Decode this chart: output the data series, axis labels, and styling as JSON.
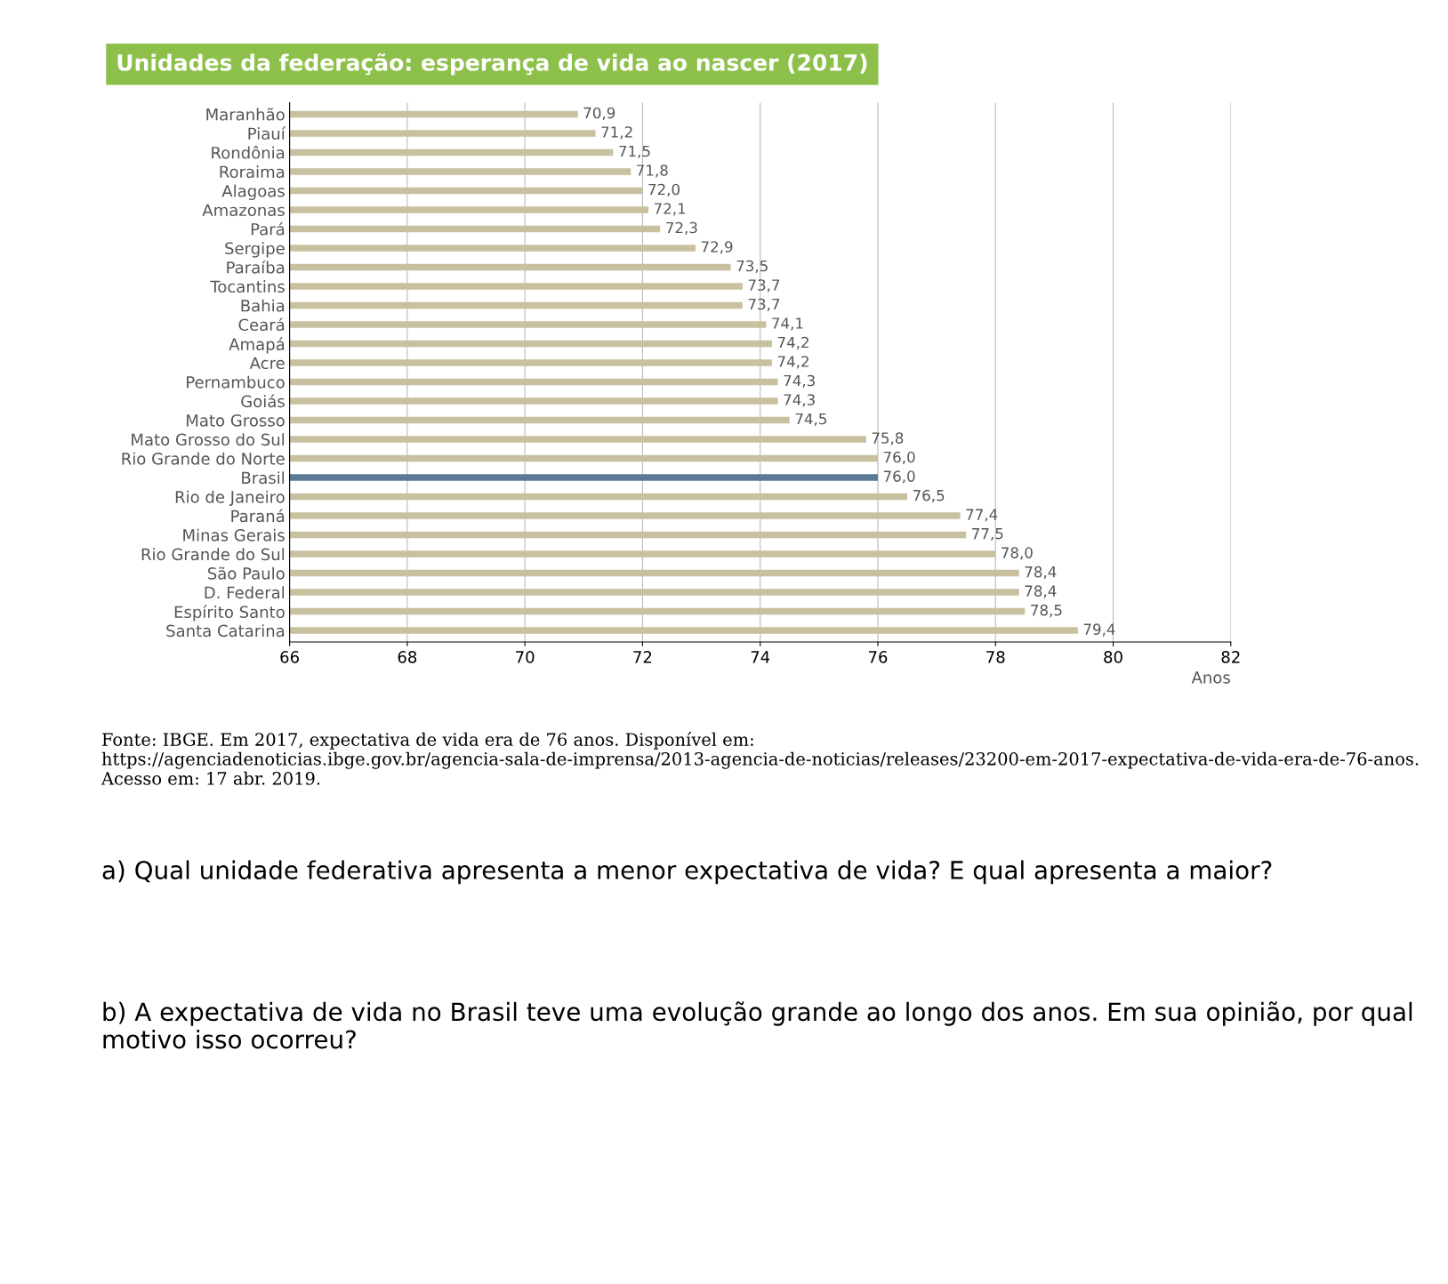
{
  "chart_data": {
    "type": "bar",
    "orientation": "horizontal",
    "title": "Unidades da federação: esperança de vida ao nascer (2017)",
    "xlabel": "Anos",
    "categories": [
      "Maranhão",
      "Piauí",
      "Rondônia",
      "Roraima",
      "Alagoas",
      "Amazonas",
      "Pará",
      "Sergipe",
      "Paraíba",
      "Tocantins",
      "Bahia",
      "Ceará",
      "Amapá",
      "Acre",
      "Pernambuco",
      "Goiás",
      "Mato Grosso",
      "Mato Grosso do Sul",
      "Rio Grande do Norte",
      "Brasil",
      "Rio de Janeiro",
      "Paraná",
      "Minas Gerais",
      "Rio Grande do Sul",
      "São Paulo",
      "D. Federal",
      "Espírito Santo",
      "Santa Catarina"
    ],
    "values": [
      70.9,
      71.2,
      71.5,
      71.8,
      72.0,
      72.1,
      72.3,
      72.9,
      73.5,
      73.7,
      73.7,
      74.1,
      74.2,
      74.2,
      74.3,
      74.3,
      74.5,
      75.8,
      76.0,
      76.0,
      76.5,
      77.4,
      77.5,
      78.0,
      78.4,
      78.4,
      78.5,
      79.4
    ],
    "value_labels": [
      "70,9",
      "71,2",
      "71,5",
      "71,8",
      "72,0",
      "72,1",
      "72,3",
      "72,9",
      "73,5",
      "73,7",
      "73,7",
      "74,1",
      "74,2",
      "74,2",
      "74,3",
      "74,3",
      "74,5",
      "75,8",
      "76,0",
      "76,0",
      "76,5",
      "77,4",
      "77,5",
      "78,0",
      "78,4",
      "78,4",
      "78,5",
      "79,4"
    ],
    "colors": [
      "#c8c09e",
      "#c8c09e",
      "#c8c09e",
      "#c8c09e",
      "#c8c09e",
      "#c8c09e",
      "#c8c09e",
      "#c8c09e",
      "#c8c09e",
      "#c8c09e",
      "#c8c09e",
      "#c8c09e",
      "#c8c09e",
      "#c8c09e",
      "#c8c09e",
      "#c8c09e",
      "#c8c09e",
      "#c8c09e",
      "#c8c09e",
      "#5b7a98",
      "#c8c09e",
      "#c8c09e",
      "#c8c09e",
      "#c8c09e",
      "#c8c09e",
      "#c8c09e",
      "#c8c09e",
      "#c8c09e"
    ],
    "xlim": [
      66,
      82
    ],
    "xticks": [
      66,
      68,
      70,
      72,
      74,
      76,
      78,
      80,
      82
    ],
    "grid": "x",
    "legend": false,
    "annotations": [
      "Fonte: IBGE. Em 2017, expectativa de vida era de 76 anos. Disponível em: https://agenciadenoticias.ibge.gov.br/agencia-sala-de-imprensa/2013-agencia-de-noticias/releases/23200-em-2017-expectativa-de-vida-era-de-76-anos. Acesso em: 17 abr. 2019.",
      "a) Qual unidade federativa apresenta a menor expectativa de vida? E qual apresenta a maior?",
      "b) A expectativa de vida no Brasil teve uma evolução grande ao longo dos anos. Em sua opinião, por qual motivo isso ocorreu?"
    ]
  }
}
